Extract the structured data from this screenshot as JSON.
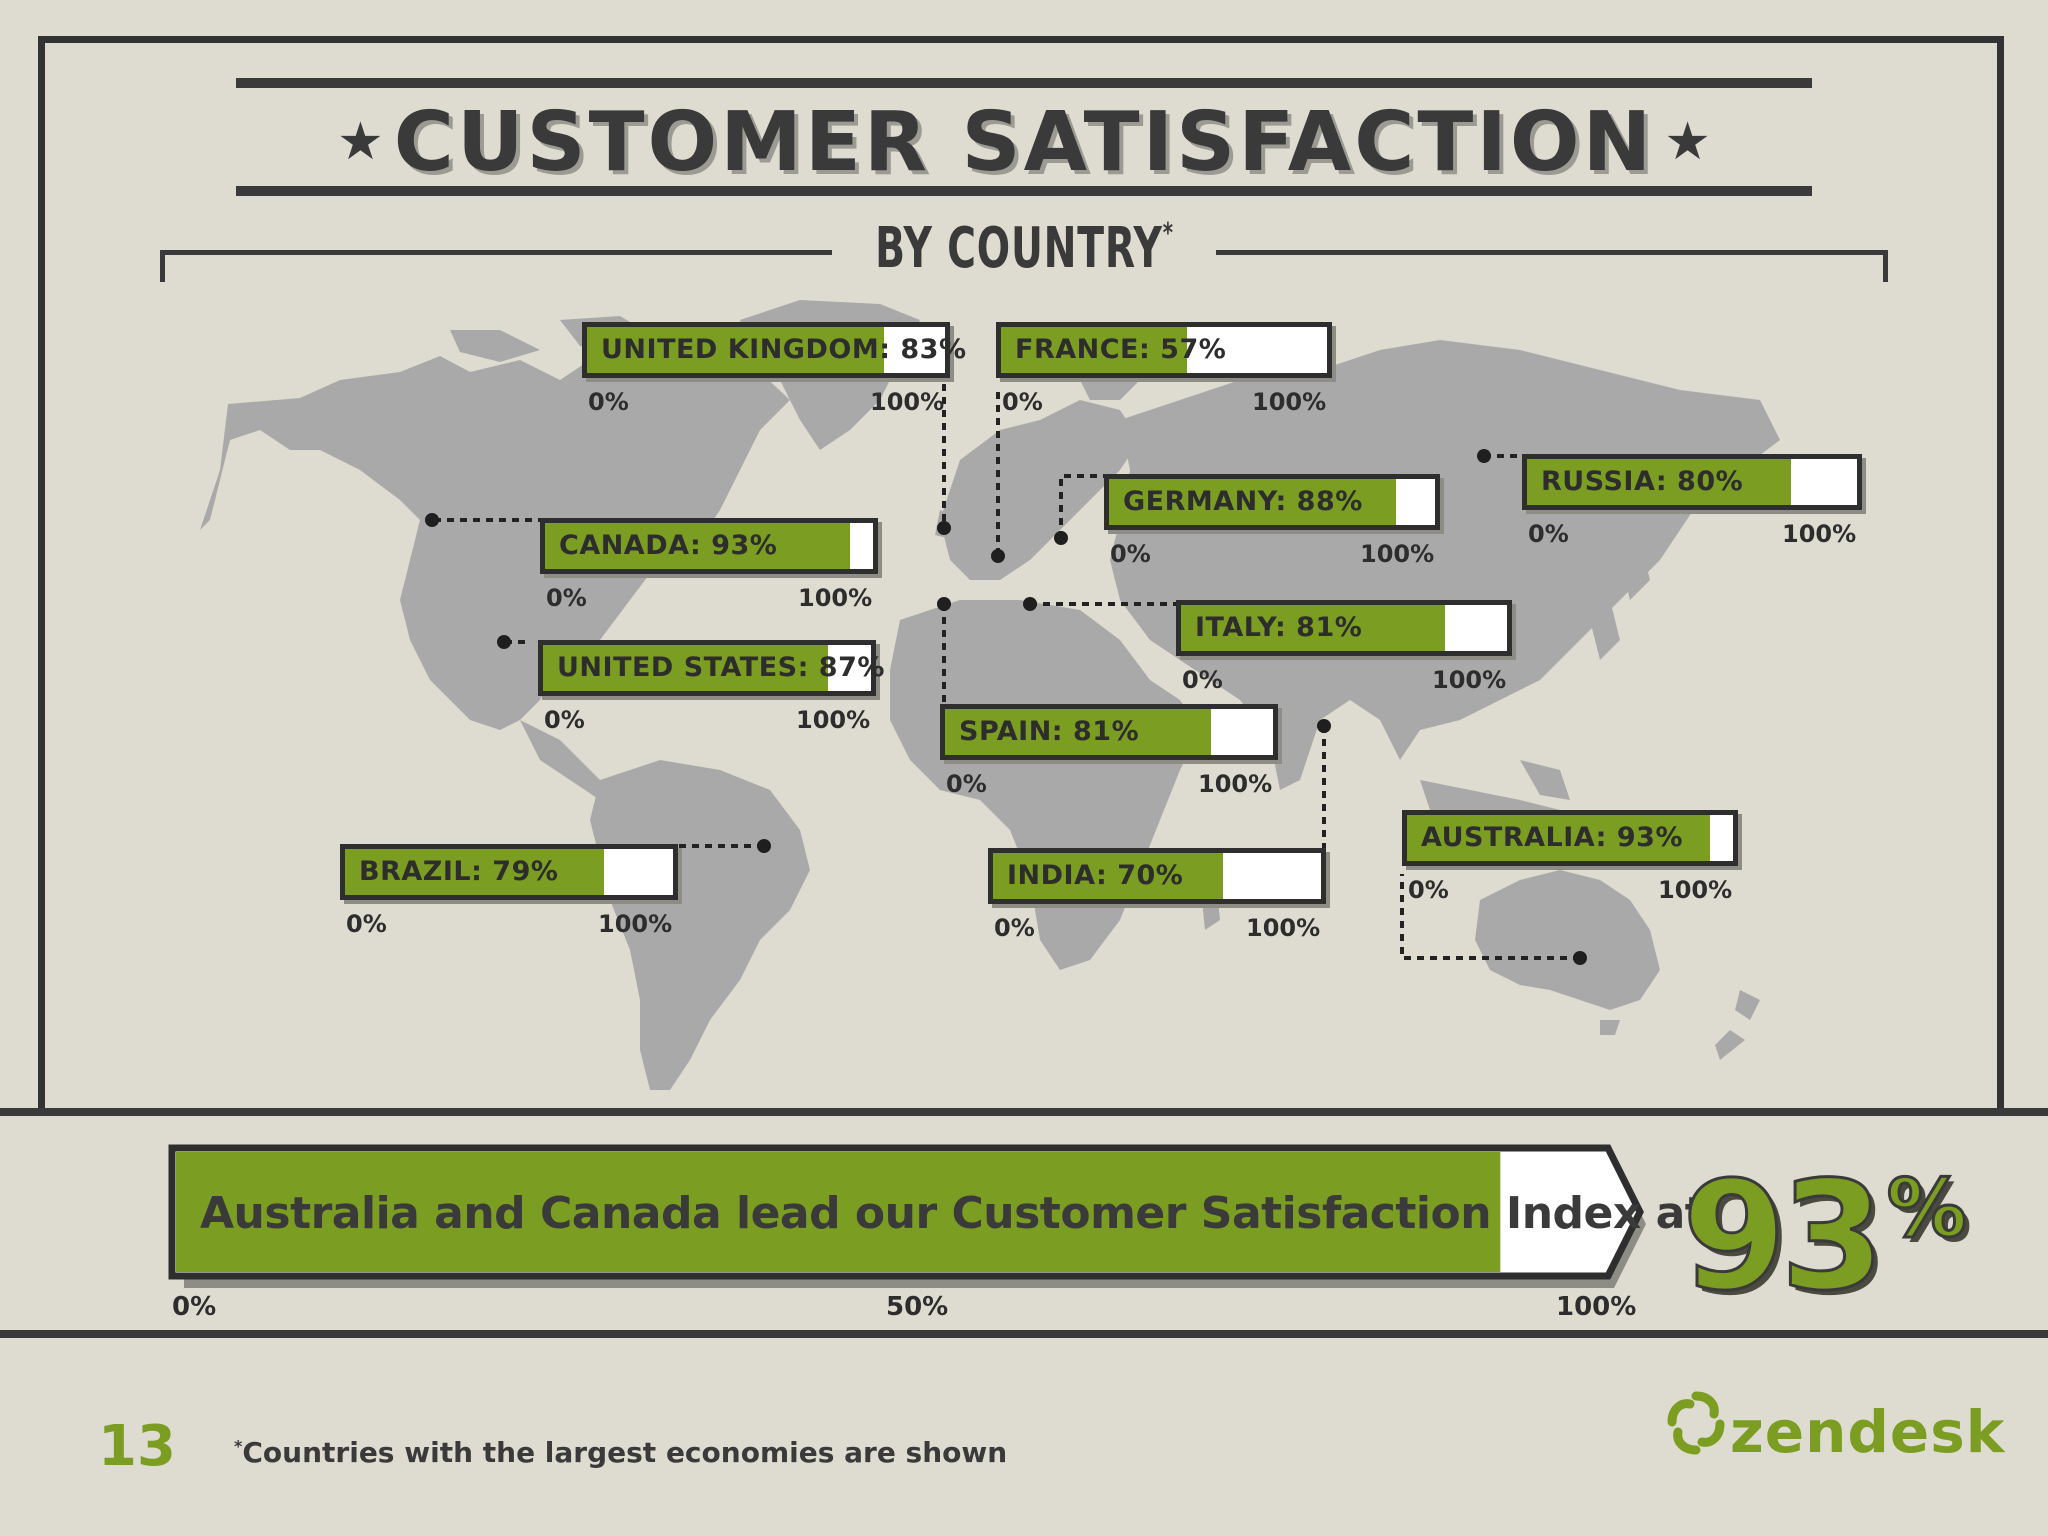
{
  "header": {
    "title": "CUSTOMER SATISFACTION",
    "subtitle": "BY COUNTRY",
    "subtitle_mark": "*"
  },
  "chart_data": {
    "type": "bar",
    "title": "CUSTOMER SATISFACTION",
    "subtitle": "BY COUNTRY",
    "categories": [
      "UNITED KINGDOM",
      "FRANCE",
      "RUSSIA",
      "GERMANY",
      "CANADA",
      "ITALY",
      "UNITED STATES",
      "SPAIN",
      "BRAZIL",
      "INDIA",
      "AUSTRALIA"
    ],
    "values": [
      83,
      57,
      80,
      88,
      93,
      81,
      87,
      81,
      79,
      70,
      93
    ],
    "labels": [
      "UNITED KINGDOM: 83%",
      "FRANCE: 57%",
      "RUSSIA: 80%",
      "GERMANY: 88%",
      "CANADA: 93%",
      "ITALY: 81%",
      "UNITED STATES: 87%",
      "SPAIN: 81%",
      "BRAZIL: 79%",
      "INDIA: 70%",
      "AUSTRALIA: 93%"
    ],
    "ylim": [
      0,
      100
    ],
    "axis_min_label": "0%",
    "axis_max_label": "100%",
    "bar_color": "#7b9d21"
  },
  "banner": {
    "text": "Australia and Canada lead our Customer Satisfaction Index at",
    "value": 93,
    "value_number": "93",
    "value_unit": "%",
    "ticks": [
      "0%",
      "50%",
      "100%"
    ]
  },
  "footer": {
    "page_number": "13",
    "footnote_mark": "*",
    "footnote": "Countries with the largest economies are shown",
    "brand": "zendesk"
  },
  "colors": {
    "background": "#dedbd0",
    "accent": "#7b9d21",
    "dark": "#333333",
    "map": "#a9a9a9"
  }
}
